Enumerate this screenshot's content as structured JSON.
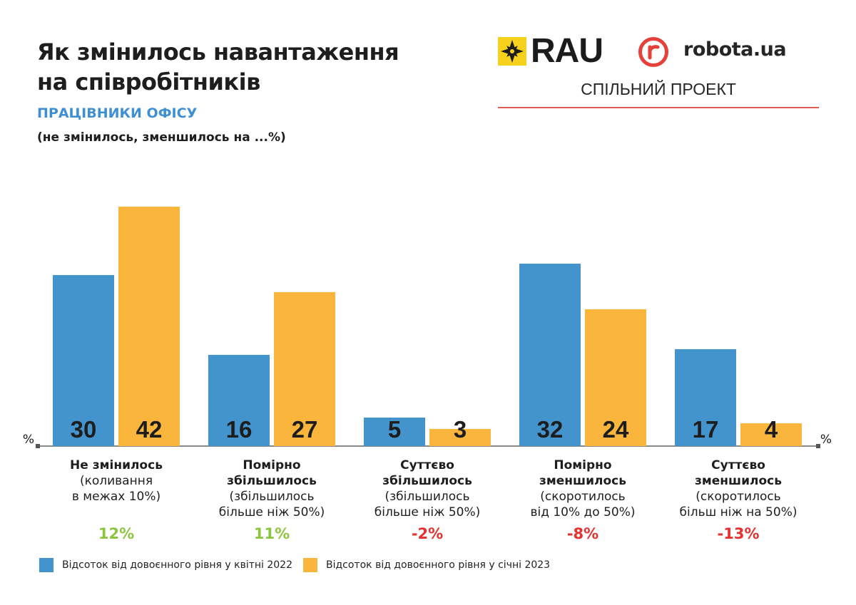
{
  "header": {
    "title_line1": "Як змінилось навантаження",
    "title_line2": "на співробітників",
    "subtitle": "ПРАЦІВНИКИ ОФІСУ",
    "note": "(не змінилось, зменшилось на ...%)"
  },
  "logos": {
    "rau": "RAU",
    "robota": "robota.ua",
    "joint_project": "СПІЛЬНИЙ ПРОЕКТ"
  },
  "colors": {
    "blue": "#4394cd",
    "orange": "#f9b53c",
    "green": "#8cc63f",
    "red": "#e5312f",
    "axis": "#8a8a8a"
  },
  "chart_data": {
    "type": "bar",
    "title": "Як змінилось навантаження на співробітників",
    "unit_label": "%",
    "ylim": [
      0,
      45
    ],
    "categories": [
      [
        "Не змінилось",
        "(коливання",
        "в межах 10%)"
      ],
      [
        "Помірно",
        "збільшилось",
        "(збільшилось",
        "більше ніж 50%)"
      ],
      [
        "Суттєво",
        "збільшилось",
        "(збільшилось",
        "більше ніж 50%)"
      ],
      [
        "Помірно",
        "зменшилось",
        "(скоротилось",
        "від 10% до 50%)"
      ],
      [
        "Суттєво",
        "зменшилось",
        "(скоротилось",
        "більш ніж на 50%)"
      ]
    ],
    "bold_lines": [
      1,
      2,
      2,
      2,
      2
    ],
    "series": [
      {
        "name": "Відсоток від довоєнного рівня у квітні 2022",
        "values": [
          30,
          16,
          5,
          32,
          17
        ]
      },
      {
        "name": "Відсоток від довоєнного рівня у січні 2023",
        "values": [
          42,
          27,
          3,
          24,
          4
        ]
      }
    ],
    "changes": [
      "12%",
      "11%",
      "-2%",
      "-8%",
      "-13%"
    ],
    "change_positive": [
      true,
      true,
      false,
      false,
      false
    ]
  }
}
